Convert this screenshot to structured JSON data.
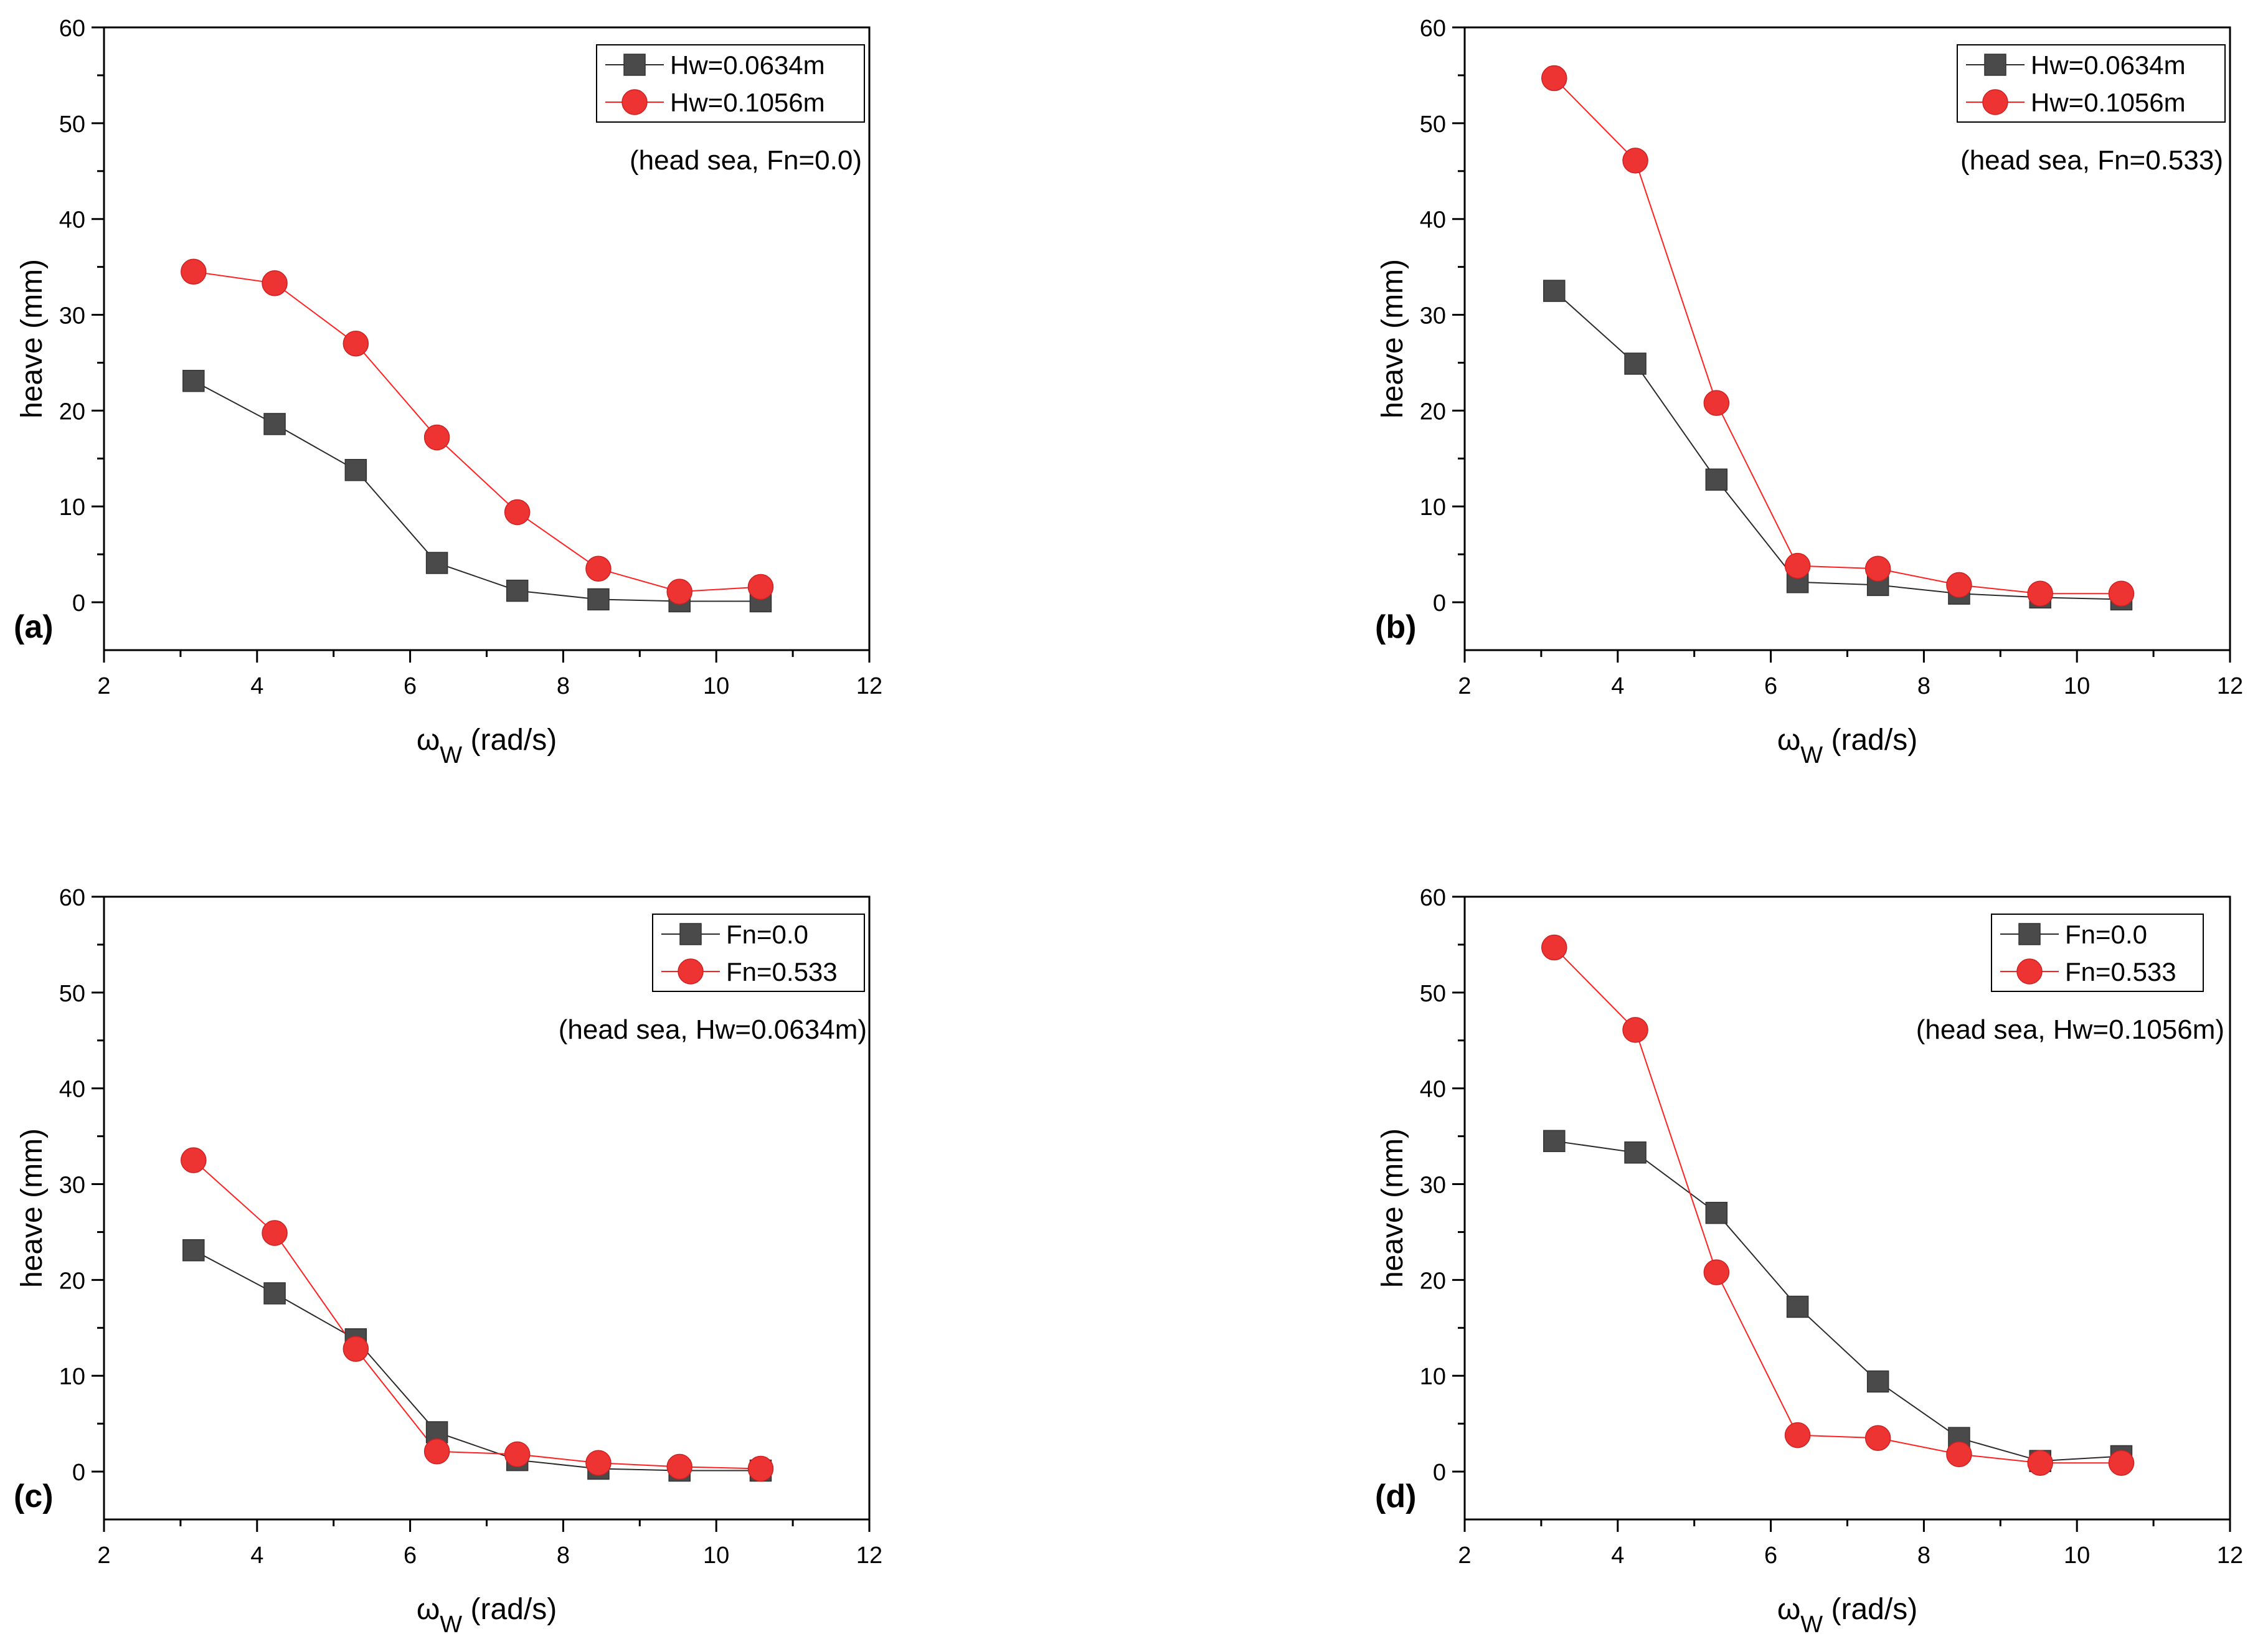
{
  "colors": {
    "series_square": "#4a4a4a",
    "series_circle": "#ee3333",
    "line_square": "#2b2b2b",
    "line_circle": "#ff2020",
    "axis": "#000000"
  },
  "chart_data": [
    {
      "type": "line",
      "panel_label": "(a)",
      "annotation": "(head sea, Fn=0.0)",
      "ylabel": "heave (mm)",
      "xlabel_main": "ω",
      "xlabel_sub": "W",
      "xlabel_unit": " (rad/s)",
      "xlim": [
        2,
        12
      ],
      "ylim": [
        -5,
        60
      ],
      "xticks": [
        2,
        4,
        6,
        8,
        10,
        12
      ],
      "yticks": [
        0,
        10,
        20,
        30,
        40,
        50,
        60
      ],
      "x": [
        3.17,
        4.23,
        5.29,
        6.35,
        7.4,
        8.46,
        9.52,
        10.58
      ],
      "series": [
        {
          "name": "Hw=0.0634m",
          "marker": "square",
          "values": [
            23.1,
            18.6,
            13.8,
            4.1,
            1.2,
            0.3,
            0.1,
            0.1
          ]
        },
        {
          "name": "Hw=0.1056m",
          "marker": "circle",
          "values": [
            34.5,
            33.3,
            27.0,
            17.2,
            9.4,
            3.5,
            1.1,
            1.6
          ]
        }
      ]
    },
    {
      "type": "line",
      "panel_label": "(b)",
      "annotation": "(head sea, Fn=0.533)",
      "ylabel": "heave (mm)",
      "xlabel_main": "ω",
      "xlabel_sub": "W",
      "xlabel_unit": " (rad/s)",
      "xlim": [
        2,
        12
      ],
      "ylim": [
        -5,
        60
      ],
      "xticks": [
        2,
        4,
        6,
        8,
        10,
        12
      ],
      "yticks": [
        0,
        10,
        20,
        30,
        40,
        50,
        60
      ],
      "x": [
        3.17,
        4.23,
        5.29,
        6.35,
        7.4,
        8.46,
        9.52,
        10.58
      ],
      "series": [
        {
          "name": "Hw=0.0634m",
          "marker": "square",
          "values": [
            32.5,
            24.9,
            12.8,
            2.1,
            1.8,
            0.9,
            0.5,
            0.3
          ]
        },
        {
          "name": "Hw=0.1056m",
          "marker": "circle",
          "values": [
            54.7,
            46.1,
            20.8,
            3.8,
            3.5,
            1.8,
            0.9,
            0.9
          ]
        }
      ]
    },
    {
      "type": "line",
      "panel_label": "(c)",
      "annotation": "(head sea, Hw=0.0634m)",
      "ylabel": "heave (mm)",
      "xlabel_main": "ω",
      "xlabel_sub": "W",
      "xlabel_unit": " (rad/s)",
      "xlim": [
        2,
        12
      ],
      "ylim": [
        -5,
        60
      ],
      "xticks": [
        2,
        4,
        6,
        8,
        10,
        12
      ],
      "yticks": [
        0,
        10,
        20,
        30,
        40,
        50,
        60
      ],
      "x": [
        3.17,
        4.23,
        5.29,
        6.35,
        7.4,
        8.46,
        9.52,
        10.58
      ],
      "series": [
        {
          "name": "Fn=0.0",
          "marker": "square",
          "values": [
            23.1,
            18.6,
            13.8,
            4.1,
            1.2,
            0.3,
            0.1,
            0.1
          ]
        },
        {
          "name": "Fn=0.533",
          "marker": "circle",
          "values": [
            32.5,
            24.9,
            12.8,
            2.1,
            1.8,
            0.9,
            0.5,
            0.3
          ]
        }
      ]
    },
    {
      "type": "line",
      "panel_label": "(d)",
      "annotation": "(head sea, Hw=0.1056m)",
      "ylabel": "heave (mm)",
      "xlabel_main": "ω",
      "xlabel_sub": "W",
      "xlabel_unit": " (rad/s)",
      "xlim": [
        2,
        12
      ],
      "ylim": [
        -5,
        60
      ],
      "xticks": [
        2,
        4,
        6,
        8,
        10,
        12
      ],
      "yticks": [
        0,
        10,
        20,
        30,
        40,
        50,
        60
      ],
      "x": [
        3.17,
        4.23,
        5.29,
        6.35,
        7.4,
        8.46,
        9.52,
        10.58
      ],
      "series": [
        {
          "name": "Fn=0.0",
          "marker": "square",
          "values": [
            34.5,
            33.3,
            27.0,
            17.2,
            9.4,
            3.5,
            1.1,
            1.6
          ]
        },
        {
          "name": "Fn=0.533",
          "marker": "circle",
          "values": [
            54.7,
            46.1,
            20.8,
            3.8,
            3.5,
            1.8,
            0.9,
            0.9
          ]
        }
      ]
    }
  ]
}
